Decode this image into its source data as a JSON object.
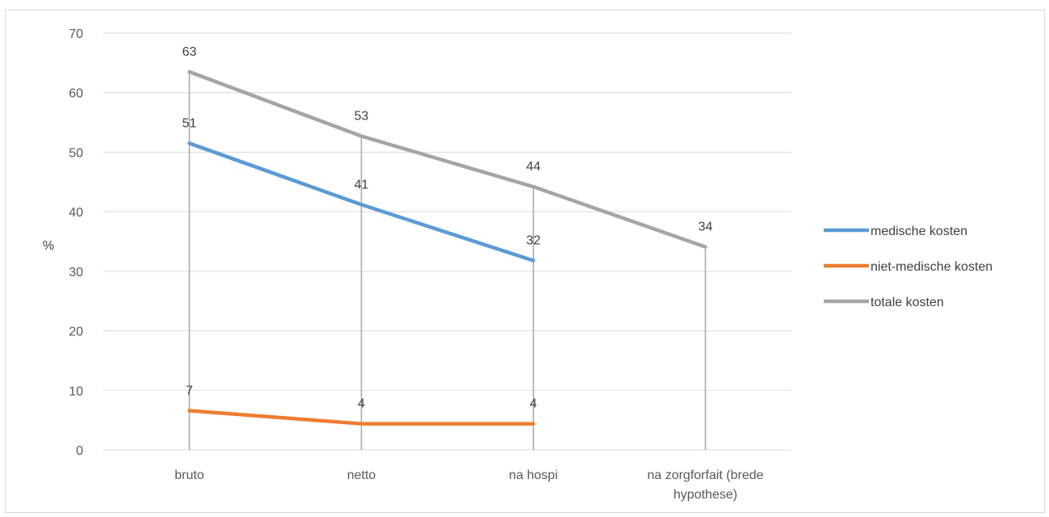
{
  "chart_data": {
    "type": "line",
    "title": "",
    "xlabel": "",
    "ylabel": "%",
    "ylim": [
      0,
      70
    ],
    "yticks": [
      0,
      10,
      20,
      30,
      40,
      50,
      60,
      70
    ],
    "categories": [
      "bruto",
      "netto",
      "na hospi",
      "na zorgforfait (brede hypothese)"
    ],
    "category_lines": [
      [
        "bruto"
      ],
      [
        "netto"
      ],
      [
        "na hospi"
      ],
      [
        "na zorgforfait (brede",
        "hypothese)"
      ]
    ],
    "grid": true,
    "legend_position": "right",
    "series": [
      {
        "name": "medische kosten",
        "color": "#5b9bd5",
        "values": [
          51.5,
          41.2,
          31.8,
          null
        ],
        "labels": [
          "51",
          "41",
          "32",
          ""
        ]
      },
      {
        "name": "niet-medische kosten",
        "color": "#ed7d31",
        "values": [
          6.6,
          4.4,
          4.4,
          null
        ],
        "labels": [
          "7",
          "4",
          "4",
          ""
        ]
      },
      {
        "name": "totale kosten",
        "color": "#a5a5a5",
        "values": [
          63.5,
          52.7,
          44.2,
          34.1
        ],
        "labels": [
          "63",
          "53",
          "44",
          "34"
        ]
      }
    ]
  }
}
